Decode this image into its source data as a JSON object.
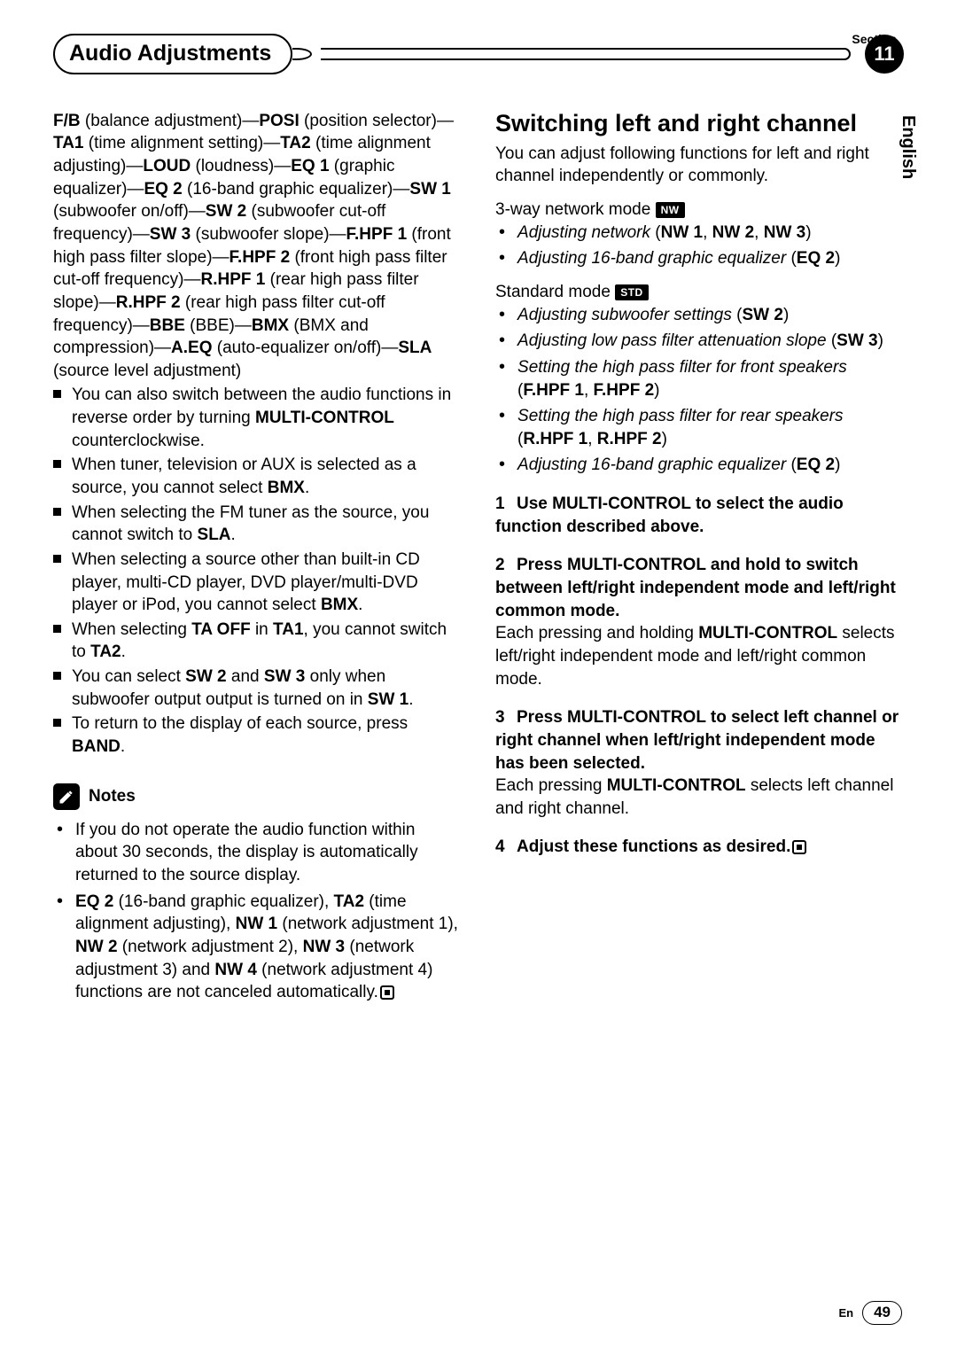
{
  "header": {
    "section_label": "Section",
    "title": "Audio Adjustments",
    "number": "11",
    "side_lang": "English"
  },
  "left": {
    "chain": "<b>F/B</b> (balance adjustment)—<b>POSI</b> (position selector)—<b>TA1</b> (time alignment setting)—<b>TA2</b> (time alignment adjusting)—<b>LOUD</b> (loudness)—<b>EQ 1</b> (graphic equalizer)—<b>EQ 2</b> (16-band graphic equalizer)—<b>SW 1</b> (subwoofer on/off)—<b>SW 2</b> (subwoofer cut-off frequency)—<b>SW 3</b> (subwoofer slope)—<b>F.HPF 1</b> (front high pass filter slope)—<b>F.HPF 2</b> (front high pass filter cut-off frequency)—<b>R.HPF 1</b> (rear high pass filter slope)—<b>R.HPF 2</b> (rear high pass filter cut-off frequency)—<b>BBE</b> (BBE)—<b>BMX</b> (BMX and compression)—<b>A.EQ</b> (auto-equalizer on/off)—<b>SLA</b> (source level adjustment)",
    "bullets": [
      "You can also switch between the audio functions in reverse order by turning <b>MULTI-CONTROL</b> counterclockwise.",
      "When tuner, television or AUX is selected as a source,  you cannot select <b>BMX</b>.",
      "When selecting the FM tuner as the source, you cannot switch to <b>SLA</b>.",
      "When selecting a source other than built-in CD player, multi-CD player, DVD player/multi-DVD player or iPod, you cannot select <b>BMX</b>.",
      "When selecting <b>TA OFF</b> in <b>TA1</b>, you cannot switch to <b>TA2</b>.",
      "You can select <b>SW 2</b> and <b>SW 3</b> only when subwoofer output output is turned on in <b>SW 1</b>.",
      "To return to the display of each source, press <b>BAND</b>."
    ],
    "notes_title": "Notes",
    "notes": [
      "If you do not operate the audio function within about 30 seconds, the display is automatically returned to the source display.",
      "<b>EQ 2</b> (16-band graphic equalizer), <b>TA2</b> (time alignment adjusting), <b>NW 1</b> (network adjustment 1), <b>NW 2</b> (network adjustment 2), <b>NW 3</b> (network adjustment 3) and <b>NW 4</b> (network adjustment 4) functions are not canceled automatically."
    ]
  },
  "right": {
    "heading": "Switching left and right channel",
    "intro": "You can adjust following functions for left and right channel independently or commonly.",
    "mode1_label": "3-way network mode",
    "mode1_badge": "NW",
    "mode1_items": [
      "<em>Adjusting network</em> (<b>NW 1</b>, <b>NW 2</b>, <b>NW 3</b>)",
      "<em>Adjusting 16-band graphic equalizer</em> (<b>EQ 2</b>)"
    ],
    "mode2_label": "Standard mode",
    "mode2_badge": "STD",
    "mode2_items": [
      "<em>Adjusting subwoofer settings</em> (<b>SW 2</b>)",
      "<em>Adjusting low pass filter attenuation slope</em> (<b>SW 3</b>)",
      "<em>Setting the high pass filter for front speakers</em> (<b>F.HPF 1</b>, <b>F.HPF 2</b>)",
      "<em>Setting the high pass filter for rear speakers</em> (<b>R.HPF 1</b>, <b>R.HPF 2</b>)",
      "<em>Adjusting 16-band graphic equalizer</em> (<b>EQ 2</b>)"
    ],
    "steps": [
      {
        "n": "1",
        "head": "Use MULTI-CONTROL to select the audio function described above.",
        "body": ""
      },
      {
        "n": "2",
        "head": "Press MULTI-CONTROL and hold to switch between left/right independent mode and left/right common mode.",
        "body": "Each pressing and holding <b>MULTI-CONTROL</b> selects left/right independent mode and left/right common mode."
      },
      {
        "n": "3",
        "head": "Press MULTI-CONTROL to select left channel or right channel when left/right independent mode has been selected.",
        "body": "Each pressing <b>MULTI-CONTROL</b> selects left channel and right channel."
      },
      {
        "n": "4",
        "head": "Adjust these functions as desired.",
        "body": ""
      }
    ]
  },
  "footer": {
    "lang_short": "En",
    "page": "49"
  }
}
